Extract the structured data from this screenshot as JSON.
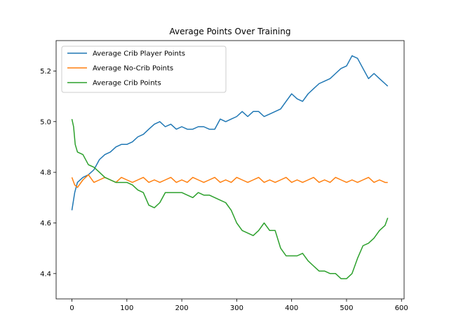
{
  "chart_data": {
    "type": "line",
    "title": "Average Points Over Training",
    "xlabel": "",
    "ylabel": "",
    "xlim": [
      -28.8,
      604.8
    ],
    "ylim": [
      4.3,
      5.32
    ],
    "xticks": [
      0,
      100,
      200,
      300,
      400,
      500,
      600
    ],
    "yticks": [
      4.4,
      4.6,
      4.8,
      5.0,
      5.2
    ],
    "xtick_labels": [
      "0",
      "100",
      "200",
      "300",
      "400",
      "500",
      "600"
    ],
    "ytick_labels": [
      "4.4",
      "4.6",
      "4.8",
      "5.0",
      "5.2"
    ],
    "grid": false,
    "legend_position": "upper left",
    "series": [
      {
        "name": "Average Crib Player Points",
        "color": "#1f77b4",
        "x": [
          0,
          5,
          10,
          20,
          30,
          40,
          50,
          60,
          70,
          80,
          90,
          100,
          110,
          120,
          130,
          140,
          150,
          160,
          170,
          180,
          190,
          200,
          210,
          220,
          230,
          240,
          250,
          260,
          270,
          280,
          290,
          300,
          310,
          320,
          330,
          340,
          350,
          360,
          370,
          380,
          390,
          400,
          410,
          420,
          430,
          440,
          450,
          460,
          470,
          480,
          490,
          500,
          510,
          520,
          530,
          540,
          550,
          560,
          570,
          575
        ],
        "y": [
          4.65,
          4.72,
          4.76,
          4.78,
          4.79,
          4.81,
          4.85,
          4.87,
          4.88,
          4.9,
          4.91,
          4.91,
          4.92,
          4.94,
          4.95,
          4.97,
          4.99,
          5.0,
          4.98,
          4.99,
          4.97,
          4.98,
          4.97,
          4.97,
          4.98,
          4.98,
          4.97,
          4.97,
          5.01,
          5.0,
          5.01,
          5.02,
          5.04,
          5.02,
          5.04,
          5.04,
          5.02,
          5.03,
          5.04,
          5.05,
          5.08,
          5.11,
          5.09,
          5.08,
          5.11,
          5.13,
          5.15,
          5.16,
          5.17,
          5.19,
          5.21,
          5.22,
          5.26,
          5.25,
          5.21,
          5.17,
          5.19,
          5.17,
          5.15,
          5.14
        ]
      },
      {
        "name": "Average No-Crib Points",
        "color": "#ff7f0e",
        "x": [
          0,
          5,
          10,
          20,
          30,
          40,
          50,
          60,
          70,
          80,
          90,
          100,
          110,
          120,
          130,
          140,
          150,
          160,
          170,
          180,
          190,
          200,
          210,
          220,
          230,
          240,
          250,
          260,
          270,
          280,
          290,
          300,
          310,
          320,
          330,
          340,
          350,
          360,
          370,
          380,
          390,
          400,
          410,
          420,
          430,
          440,
          450,
          460,
          470,
          480,
          490,
          500,
          510,
          520,
          530,
          540,
          550,
          560,
          570,
          575
        ],
        "y": [
          4.78,
          4.75,
          4.74,
          4.77,
          4.79,
          4.76,
          4.77,
          4.78,
          4.77,
          4.76,
          4.78,
          4.77,
          4.76,
          4.77,
          4.78,
          4.76,
          4.77,
          4.76,
          4.77,
          4.78,
          4.76,
          4.77,
          4.76,
          4.78,
          4.77,
          4.76,
          4.77,
          4.78,
          4.76,
          4.77,
          4.76,
          4.78,
          4.77,
          4.76,
          4.77,
          4.78,
          4.76,
          4.77,
          4.76,
          4.77,
          4.78,
          4.76,
          4.77,
          4.76,
          4.77,
          4.78,
          4.76,
          4.77,
          4.76,
          4.78,
          4.77,
          4.76,
          4.77,
          4.76,
          4.77,
          4.78,
          4.76,
          4.77,
          4.76,
          4.76
        ]
      },
      {
        "name": "Average Crib Points",
        "color": "#2ca02c",
        "x": [
          0,
          3,
          6,
          10,
          20,
          30,
          40,
          50,
          60,
          70,
          80,
          90,
          100,
          110,
          120,
          130,
          140,
          150,
          160,
          170,
          180,
          190,
          200,
          210,
          220,
          230,
          240,
          250,
          260,
          270,
          280,
          290,
          300,
          310,
          320,
          330,
          340,
          350,
          360,
          370,
          380,
          390,
          400,
          410,
          420,
          430,
          440,
          450,
          460,
          470,
          480,
          490,
          500,
          510,
          520,
          530,
          540,
          550,
          560,
          570,
          575
        ],
        "y": [
          5.01,
          4.98,
          4.91,
          4.88,
          4.87,
          4.83,
          4.82,
          4.8,
          4.78,
          4.77,
          4.76,
          4.76,
          4.76,
          4.75,
          4.73,
          4.72,
          4.67,
          4.66,
          4.68,
          4.72,
          4.72,
          4.72,
          4.72,
          4.71,
          4.7,
          4.72,
          4.71,
          4.71,
          4.7,
          4.69,
          4.68,
          4.65,
          4.6,
          4.57,
          4.56,
          4.55,
          4.57,
          4.6,
          4.57,
          4.57,
          4.5,
          4.47,
          4.47,
          4.47,
          4.48,
          4.45,
          4.43,
          4.41,
          4.41,
          4.4,
          4.4,
          4.38,
          4.38,
          4.4,
          4.46,
          4.51,
          4.52,
          4.54,
          4.57,
          4.59,
          4.62
        ]
      }
    ]
  }
}
